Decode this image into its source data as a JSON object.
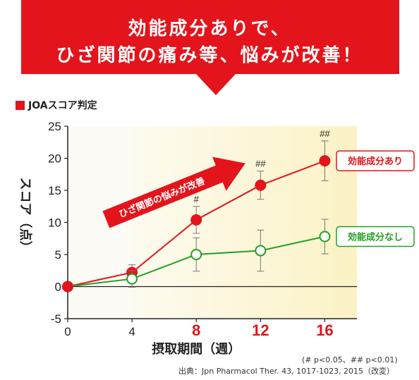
{
  "banner": {
    "line1": "効能成分ありで、",
    "line2": "ひざ関節の痛み等、悩みが改善！",
    "color": "#e3141b"
  },
  "chart_subtitle": "JOAスコア判定",
  "chart_data": {
    "type": "line",
    "x": [
      0,
      4,
      8,
      12,
      16
    ],
    "x_tick_labels": [
      "0",
      "4",
      "8",
      "12",
      "16"
    ],
    "x_tick_emphasis": [
      false,
      false,
      true,
      true,
      true
    ],
    "xlabel": "摂取期間（週）",
    "ylabel": "スコア（点）",
    "ylim": [
      -5,
      25
    ],
    "y_ticks": [
      -5,
      0,
      5,
      10,
      15,
      20,
      25
    ],
    "grid": false,
    "series": [
      {
        "name": "効能成分あり",
        "values": [
          0,
          2.2,
          10.4,
          15.8,
          19.6
        ],
        "errors": [
          0,
          1.2,
          2.1,
          2.2,
          3.1
        ],
        "color": "#e3141b",
        "marker": "filled-circle",
        "significance": [
          "",
          "",
          "#",
          "##",
          "##"
        ]
      },
      {
        "name": "効能成分なし",
        "values": [
          0,
          1.2,
          5.0,
          5.6,
          7.8
        ],
        "errors": [
          0,
          1.3,
          2.6,
          3.2,
          2.7
        ],
        "color": "#22a022",
        "marker": "open-circle",
        "significance": [
          "",
          "",
          "",
          "",
          ""
        ]
      }
    ],
    "arrow_label": "ひざ関節の悩みが改善"
  },
  "notes": {
    "significance": "(# p<0.05、## p<0.01)",
    "source": "出典：Jpn Pharmacol Ther. 43, 1017-1023, 2015（改変）"
  }
}
